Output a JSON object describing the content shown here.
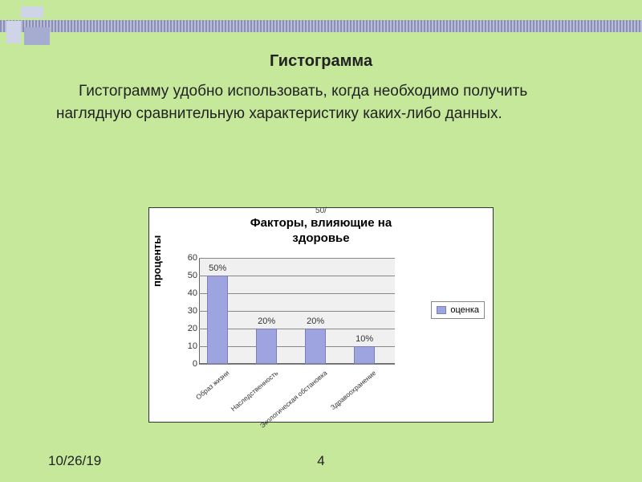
{
  "slide": {
    "title": "Гистограмма",
    "body": "Гистограмму удобно использовать, когда необходимо получить наглядную сравнительную характеристику каких-либо данных.",
    "date": "10/26/19",
    "page_number": "4"
  },
  "chart": {
    "type": "bar",
    "title_line1": "Факторы, влияющие на",
    "title_line2": "здоровье",
    "top_stray_text": "50/",
    "y_axis_label": "проценты",
    "ylim": [
      0,
      60
    ],
    "ytick_step": 10,
    "yticks": [
      "0",
      "10",
      "20",
      "30",
      "40",
      "50",
      "60"
    ],
    "categories": [
      "Образ жизни",
      "Наследственность",
      "Экологическая обстановка",
      "Здравоохранение"
    ],
    "values": [
      50,
      20,
      20,
      10
    ],
    "value_labels": [
      "50%",
      "20%",
      "20%",
      "10%"
    ],
    "bar_color": "#9da4e0",
    "bar_border_color": "#7a7fb8",
    "plot_bg": "#f0f0f0",
    "grid_color": "#888888",
    "legend_label": "оценка",
    "title_fontsize": 15,
    "label_fontsize": 11
  },
  "theme": {
    "slide_bg": "#c5e89b",
    "band_color_a": "#8a8fb8",
    "band_color_b": "#b8bcd6",
    "block_light": "#d0d4e8",
    "block_dark": "#a6abd0"
  }
}
